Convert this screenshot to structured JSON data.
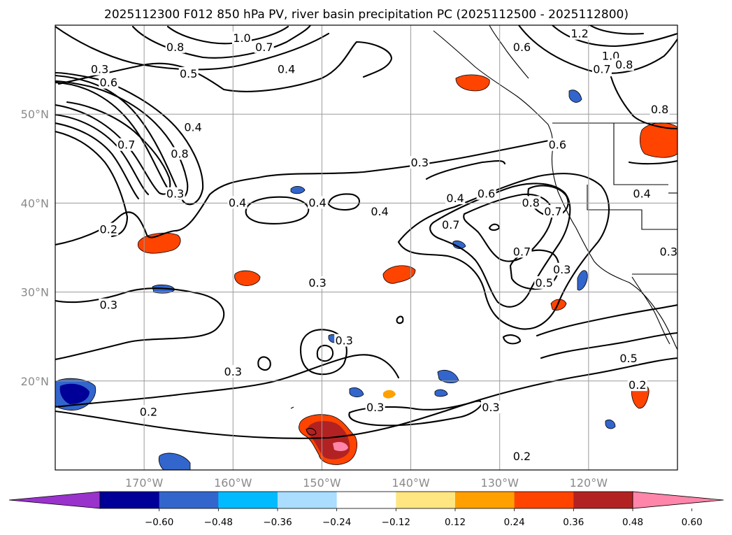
{
  "chart_data": {
    "type": "contour",
    "title": "2025112300 F012 850 hPa PV, river basin precipitation PC (2025112500 - 2025112800)",
    "projection": "PlateCarree",
    "lon_range": [
      -180,
      -110
    ],
    "lat_range": [
      10,
      60
    ],
    "x_ticks": [
      {
        "lon": -170,
        "label": "170°W"
      },
      {
        "lon": -160,
        "label": "160°W"
      },
      {
        "lon": -150,
        "label": "150°W"
      },
      {
        "lon": -140,
        "label": "140°W"
      },
      {
        "lon": -130,
        "label": "130°W"
      },
      {
        "lon": -120,
        "label": "120°W"
      }
    ],
    "y_ticks": [
      {
        "lat": 20,
        "label": "20°N"
      },
      {
        "lat": 30,
        "label": "30°N"
      },
      {
        "lat": 40,
        "label": "40°N"
      },
      {
        "lat": 50,
        "label": "50°N"
      }
    ],
    "grid": true,
    "contour_lines": {
      "field": "850 hPa PV",
      "color": "#000000",
      "labels": [
        {
          "value": "0.2",
          "lon": -174.0,
          "lat": 37.0
        },
        {
          "value": "0.3",
          "lon": -175.0,
          "lat": 55.0
        },
        {
          "value": "0.6",
          "lon": -174.0,
          "lat": 53.5
        },
        {
          "value": "0.7",
          "lon": -172.0,
          "lat": 46.5
        },
        {
          "value": "0.8",
          "lon": -166.5,
          "lat": 57.5
        },
        {
          "value": "0.5",
          "lon": -165.0,
          "lat": 54.5
        },
        {
          "value": "1.0",
          "lon": -159.0,
          "lat": 58.5
        },
        {
          "value": "0.7",
          "lon": -156.5,
          "lat": 57.5
        },
        {
          "value": "0.4",
          "lon": -154.0,
          "lat": 55.0
        },
        {
          "value": "0.4",
          "lon": -164.5,
          "lat": 48.5
        },
        {
          "value": "0.8",
          "lon": -166.0,
          "lat": 45.5
        },
        {
          "value": "0.3",
          "lon": -166.5,
          "lat": 41.0
        },
        {
          "value": "0.3",
          "lon": -174.0,
          "lat": 28.5
        },
        {
          "value": "0.4",
          "lon": -159.5,
          "lat": 40.0
        },
        {
          "value": "0.4",
          "lon": -150.5,
          "lat": 40.0
        },
        {
          "value": "0.4",
          "lon": -143.5,
          "lat": 39.0
        },
        {
          "value": "0.3",
          "lon": -139.0,
          "lat": 44.5
        },
        {
          "value": "0.3",
          "lon": -150.5,
          "lat": 31.0
        },
        {
          "value": "0.4",
          "lon": -135.0,
          "lat": 40.5
        },
        {
          "value": "0.6",
          "lon": -131.5,
          "lat": 41.0
        },
        {
          "value": "0.7",
          "lon": -135.5,
          "lat": 37.5
        },
        {
          "value": "0.8",
          "lon": -126.5,
          "lat": 40.0
        },
        {
          "value": "0.7",
          "lon": -124.0,
          "lat": 39.0
        },
        {
          "value": "0.7",
          "lon": -127.5,
          "lat": 34.5
        },
        {
          "value": "0.5",
          "lon": -125.0,
          "lat": 31.0
        },
        {
          "value": "0.3",
          "lon": -123.0,
          "lat": 32.5
        },
        {
          "value": "0.6",
          "lon": -123.5,
          "lat": 46.5
        },
        {
          "value": "0.6",
          "lon": -127.5,
          "lat": 57.5
        },
        {
          "value": "1.2",
          "lon": -121.0,
          "lat": 59.0
        },
        {
          "value": "1.0",
          "lon": -117.5,
          "lat": 56.5
        },
        {
          "value": "0.7",
          "lon": -118.5,
          "lat": 55.0
        },
        {
          "value": "0.8",
          "lon": -116.0,
          "lat": 55.5
        },
        {
          "value": "0.8",
          "lon": -112.0,
          "lat": 50.5
        },
        {
          "value": "0.4",
          "lon": -114.0,
          "lat": 41.0
        },
        {
          "value": "0.3",
          "lon": -111.0,
          "lat": 34.5
        },
        {
          "value": "0.3",
          "lon": -147.5,
          "lat": 24.5
        },
        {
          "value": "0.3",
          "lon": -160.0,
          "lat": 21.0
        },
        {
          "value": "0.2",
          "lon": -169.5,
          "lat": 16.5
        },
        {
          "value": "0.3",
          "lon": -144.0,
          "lat": 17.0
        },
        {
          "value": "0.3",
          "lon": -131.0,
          "lat": 17.0
        },
        {
          "value": "0.5",
          "lon": -115.5,
          "lat": 22.5
        },
        {
          "value": "0.2",
          "lon": -114.5,
          "lat": 19.5
        },
        {
          "value": "0.2",
          "lon": -127.5,
          "lat": 11.5
        }
      ]
    },
    "filled_contours": {
      "field": "river basin precipitation PC",
      "levels": [
        -0.6,
        -0.48,
        -0.36,
        -0.24,
        -0.12,
        0.12,
        0.24,
        0.36,
        0.48,
        0.6
      ],
      "colors": [
        "#9933cc",
        "#000099",
        "#3366cc",
        "#00bbff",
        "#aaddff",
        "#ffffff",
        "#ffe680",
        "#ffa000",
        "#ff4400",
        "#b22222",
        "#ff85aa"
      ],
      "extend": "both",
      "regions": [
        {
          "lon": -144,
          "lat": 13,
          "level": 0.6
        },
        {
          "lon": -165,
          "lat": 35,
          "level": 0.36
        },
        {
          "lon": -173,
          "lat": 18,
          "level": -0.48
        }
      ]
    },
    "colorbar": {
      "orientation": "horizontal",
      "extend": "both",
      "tick_labels": [
        "−0.60",
        "−0.48",
        "−0.36",
        "−0.24",
        "−0.12",
        "0.12",
        "0.24",
        "0.36",
        "0.48",
        "0.60"
      ]
    }
  }
}
